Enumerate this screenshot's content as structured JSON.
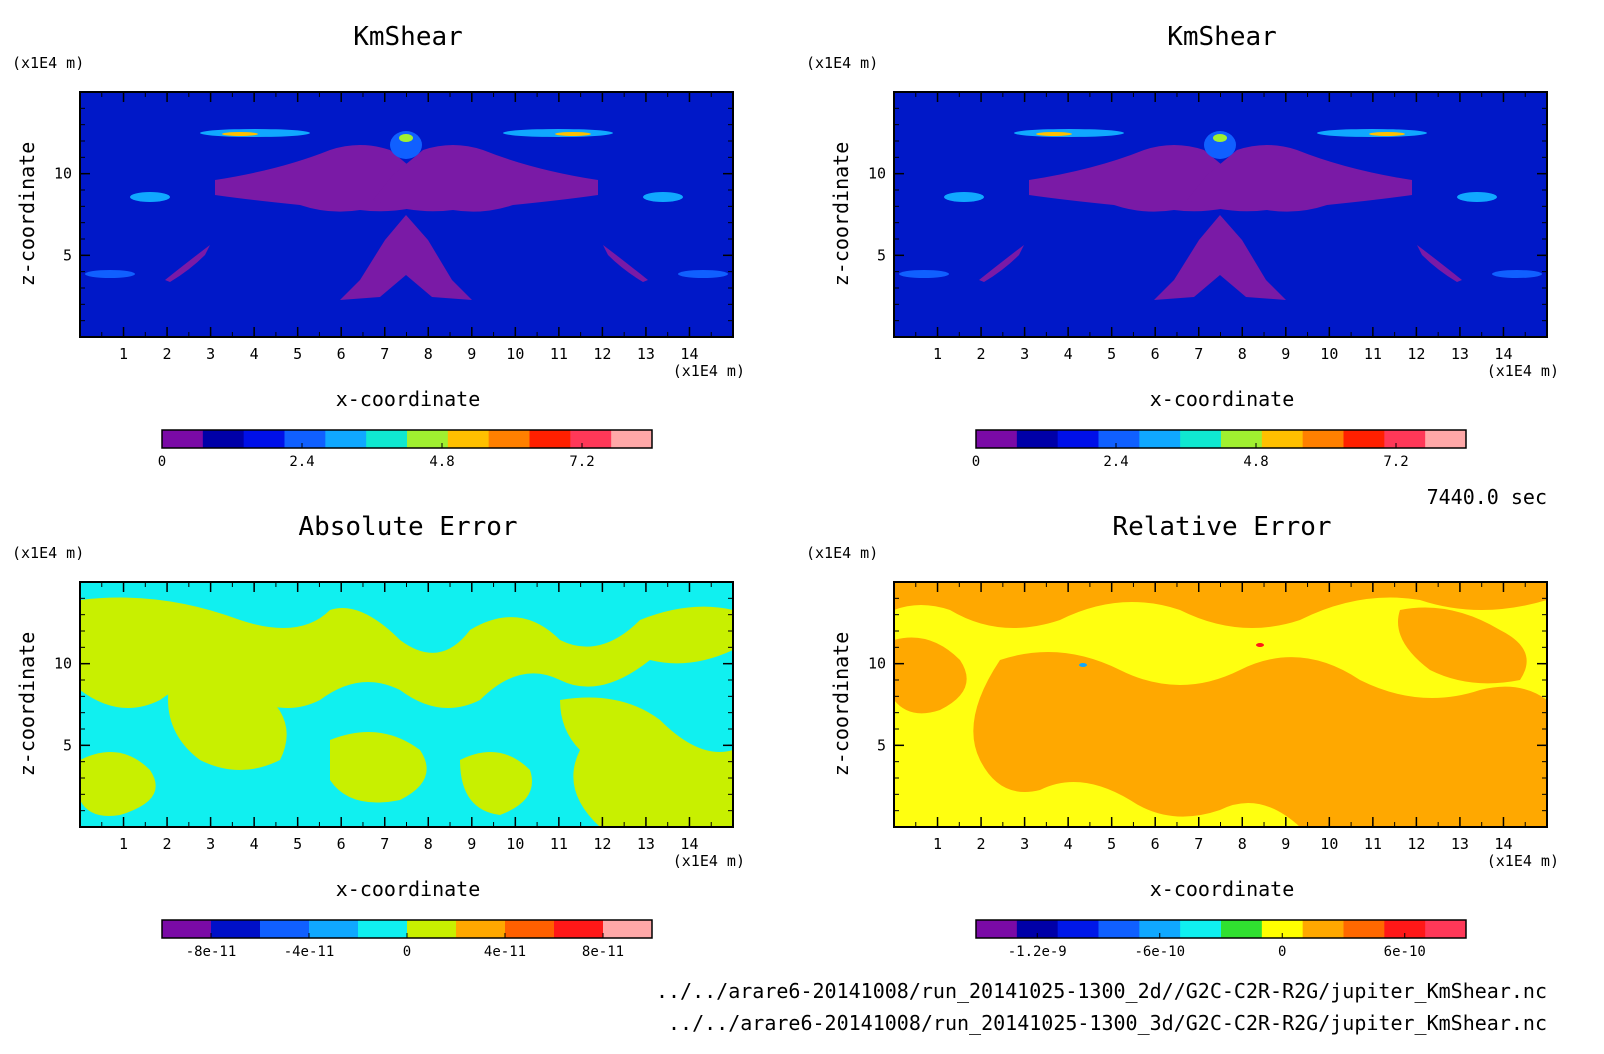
{
  "figure": {
    "time_label": "7440.0 sec",
    "file_paths": [
      "../../arare6-20141008/run_20141025-1300_2d//G2C-C2R-R2G/jupiter_KmShear.nc",
      "../../arare6-20141008/run_20141025-1300_3d/G2C-C2R-R2G/jupiter_KmShear.nc"
    ]
  },
  "chart_data": [
    {
      "type": "heatmap",
      "title": "KmShear",
      "xlabel": "x-coordinate",
      "ylabel": "z-coordinate",
      "x_unit": "(x1E4 m)",
      "y_unit": "(x1E4 m)",
      "xlim": [
        0,
        15
      ],
      "ylim": [
        0,
        15
      ],
      "x_ticks": [
        1,
        2,
        3,
        4,
        5,
        6,
        7,
        8,
        9,
        10,
        11,
        12,
        13,
        14
      ],
      "y_ticks": [
        5,
        10
      ],
      "colorbar": {
        "min": 0,
        "max": 8.4,
        "tick_values": [
          0,
          2.4,
          4.8,
          7.2
        ],
        "tick_labels": [
          "0",
          "2.4",
          "4.8",
          "7.2"
        ],
        "colors": [
          "#7a0aa6",
          "#0000a8",
          "#0010e8",
          "#1060ff",
          "#10a8ff",
          "#10e8d0",
          "#a0f030",
          "#ffc000",
          "#ff8000",
          "#ff2000",
          "#ff3858",
          "#ffa8a8"
        ]
      },
      "field": {
        "background": "#0018c8",
        "secondary": "#7a1aa6"
      }
    },
    {
      "type": "heatmap",
      "title": "KmShear",
      "xlabel": "x-coordinate",
      "ylabel": "z-coordinate",
      "x_unit": "(x1E4 m)",
      "y_unit": "(x1E4 m)",
      "xlim": [
        0,
        15
      ],
      "ylim": [
        0,
        15
      ],
      "x_ticks": [
        1,
        2,
        3,
        4,
        5,
        6,
        7,
        8,
        9,
        10,
        11,
        12,
        13,
        14
      ],
      "y_ticks": [
        5,
        10
      ],
      "colorbar": {
        "min": 0,
        "max": 8.4,
        "tick_values": [
          0,
          2.4,
          4.8,
          7.2
        ],
        "tick_labels": [
          "0",
          "2.4",
          "4.8",
          "7.2"
        ],
        "colors": [
          "#7a0aa6",
          "#0000a8",
          "#0010e8",
          "#1060ff",
          "#10a8ff",
          "#10e8d0",
          "#a0f030",
          "#ffc000",
          "#ff8000",
          "#ff2000",
          "#ff3858",
          "#ffa8a8"
        ]
      },
      "field": {
        "background": "#0018c8",
        "secondary": "#7a1aa6"
      }
    },
    {
      "type": "heatmap",
      "title": "Absolute Error",
      "xlabel": "x-coordinate",
      "ylabel": "z-coordinate",
      "x_unit": "(x1E4 m)",
      "y_unit": "(x1E4 m)",
      "xlim": [
        0,
        15
      ],
      "ylim": [
        0,
        15
      ],
      "x_ticks": [
        1,
        2,
        3,
        4,
        5,
        6,
        7,
        8,
        9,
        10,
        11,
        12,
        13,
        14
      ],
      "y_ticks": [
        5,
        10
      ],
      "colorbar": {
        "min": -1e-10,
        "max": 1e-10,
        "tick_values": [
          -8e-11,
          -4e-11,
          0,
          4e-11,
          8e-11
        ],
        "tick_labels": [
          "-8e-11",
          "-4e-11",
          "0",
          "4e-11",
          "8e-11"
        ],
        "colors": [
          "#7a0aa6",
          "#0010c8",
          "#1060ff",
          "#10a8ff",
          "#10f0f0",
          "#c8f000",
          "#ffa800",
          "#ff6000",
          "#ff1818",
          "#ffa8a8"
        ]
      },
      "field": {
        "background": "#10f0f0",
        "secondary": "#c8f000"
      }
    },
    {
      "type": "heatmap",
      "title": "Relative Error",
      "xlabel": "x-coordinate",
      "ylabel": "z-coordinate",
      "x_unit": "(x1E4 m)",
      "y_unit": "(x1E4 m)",
      "xlim": [
        0,
        15
      ],
      "ylim": [
        0,
        15
      ],
      "x_ticks": [
        1,
        2,
        3,
        4,
        5,
        6,
        7,
        8,
        9,
        10,
        11,
        12,
        13,
        14
      ],
      "y_ticks": [
        5,
        10
      ],
      "colorbar": {
        "min": -1.5e-09,
        "max": 9e-10,
        "tick_values": [
          -1.2e-09,
          -6e-10,
          0,
          6e-10
        ],
        "tick_labels": [
          "-1.2e-9",
          "-6e-10",
          "0",
          "6e-10"
        ],
        "colors": [
          "#7a0aa6",
          "#0000a8",
          "#0018e8",
          "#1060ff",
          "#10a8ff",
          "#10f0f0",
          "#30e030",
          "#ffff00",
          "#ffa800",
          "#ff6800",
          "#ff1818",
          "#ff3858"
        ]
      },
      "field": {
        "background": "#ffff10",
        "secondary": "#ffa800"
      }
    }
  ]
}
